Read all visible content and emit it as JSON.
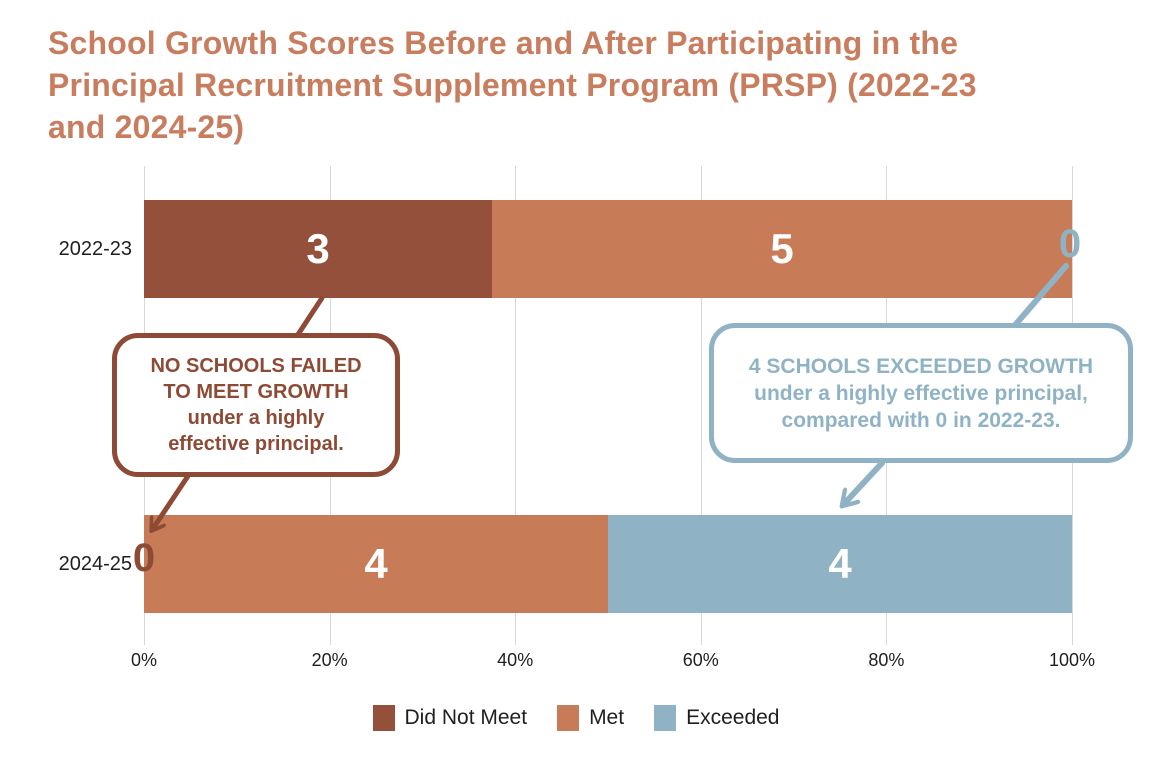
{
  "title": "School Growth Scores Before and After Participating in the Principal Recruitment Supplement Program (PRSP) (2022-23 and 2024-25)",
  "title_lines": [
    "School Growth Scores Before and After Participating in the",
    "Principal Recruitment Supplement Program (PRSP) (2022-23",
    "and 2024-25)"
  ],
  "colors": {
    "title": "#C87D5E",
    "did_not_meet": "#95503B",
    "met": "#C77B57",
    "exceeded": "#8FB3C4",
    "callout_brown": "#8D4B36",
    "callout_blue": "#8FB3C4",
    "gridline": "#D8D8D8",
    "axis_text": "#1F1F1F",
    "bar_value_label": "#FFFFFF"
  },
  "chart_data": {
    "type": "bar",
    "orientation": "horizontal",
    "stacked": true,
    "grid": true,
    "categories": [
      "2022-23",
      "2024-25"
    ],
    "series": [
      {
        "name": "Did Not Meet",
        "color": "#95503B",
        "values": [
          3,
          0
        ]
      },
      {
        "name": "Met",
        "color": "#C77B57",
        "values": [
          5,
          4
        ]
      },
      {
        "name": "Exceeded",
        "color": "#8FB3C4",
        "values": [
          0,
          4
        ]
      }
    ],
    "total_per_category": 8,
    "xlabel": "",
    "ylabel": "",
    "x_axis": {
      "ticks": [
        "0%",
        "20%",
        "40%",
        "60%",
        "80%",
        "100%"
      ],
      "range_percent": [
        0,
        100
      ]
    },
    "legend": {
      "position": "bottom",
      "items": [
        "Did Not Meet",
        "Met",
        "Exceeded"
      ]
    }
  },
  "annotations": {
    "zero_labels": [
      {
        "text": "0",
        "category": "2022-23",
        "series": "Exceeded",
        "position": "end-of-bar",
        "color": "#8FB3C4"
      },
      {
        "text": "0",
        "category": "2024-25",
        "series": "Did Not Meet",
        "position": "start-of-bar",
        "color": "#8D4B36"
      }
    ],
    "left_callout": {
      "lines": [
        "NO SCHOOLS FAILED",
        "TO MEET GROWTH",
        "under a highly",
        "effective principal."
      ],
      "color": "#8D4B36"
    },
    "right_callout": {
      "lines": [
        "4 SCHOOLS EXCEEDED GROWTH",
        "under a highly effective principal,",
        "compared with 0 in 2022-23."
      ],
      "color": "#8FB3C4"
    }
  }
}
